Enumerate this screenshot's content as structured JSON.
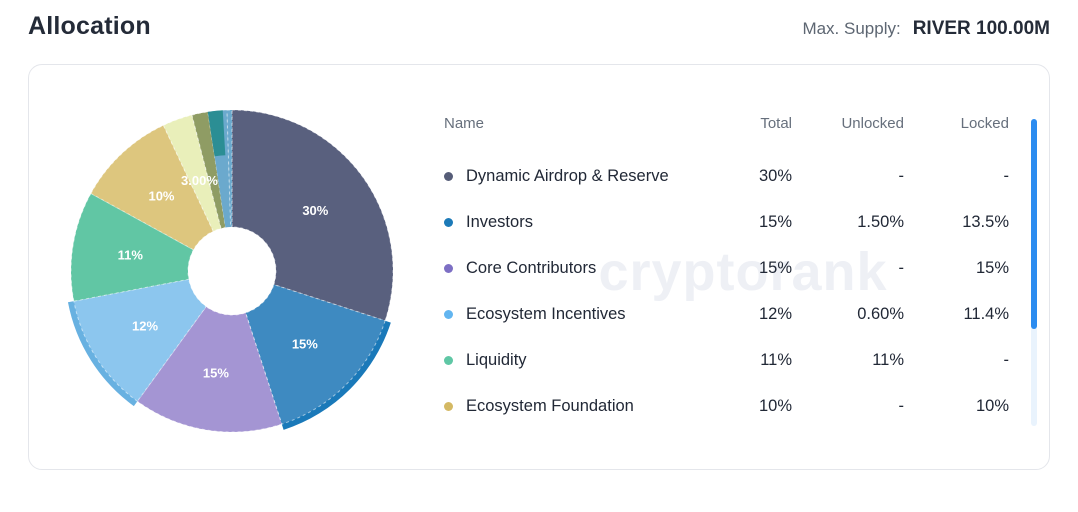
{
  "page": {
    "title": "Allocation",
    "max_supply_label": "Max. Supply:",
    "max_supply_value": "RIVER 100.00M"
  },
  "watermark": "cryptorank",
  "table": {
    "headers": {
      "name": "Name",
      "total": "Total",
      "unlocked": "Unlocked",
      "locked": "Locked"
    },
    "rows": [
      {
        "name": "Dynamic Airdrop & Reserve",
        "total": "30%",
        "unlocked": "-",
        "locked": "-",
        "dot": "#565d78"
      },
      {
        "name": "Investors",
        "total": "15%",
        "unlocked": "1.50%",
        "locked": "13.5%",
        "dot": "#1c7ab8"
      },
      {
        "name": "Core Contributors",
        "total": "15%",
        "unlocked": "-",
        "locked": "15%",
        "dot": "#7d6fc4"
      },
      {
        "name": "Ecosystem Incentives",
        "total": "12%",
        "unlocked": "0.60%",
        "locked": "11.4%",
        "dot": "#62b5f0"
      },
      {
        "name": "Liquidity",
        "total": "11%",
        "unlocked": "11%",
        "locked": "-",
        "dot": "#5fc7a5"
      },
      {
        "name": "Ecosystem Foundation",
        "total": "10%",
        "unlocked": "-",
        "locked": "10%",
        "dot": "#d4b964"
      }
    ]
  },
  "chart_data": {
    "type": "pie",
    "title": "Allocation",
    "donut": true,
    "start_angle_deg": 0,
    "direction": "clockwise",
    "legend_position": "table-right",
    "slices": [
      {
        "name": "Dynamic Airdrop & Reserve",
        "value": 30,
        "label": "30%",
        "color": "#59607E"
      },
      {
        "name": "Investors",
        "value": 15,
        "label": "15%",
        "color": "#3E8AC1",
        "edge_color": "#1A79B9"
      },
      {
        "name": "Core Contributors",
        "value": 15,
        "label": "15%",
        "color": "#A495D3"
      },
      {
        "name": "Ecosystem Incentives",
        "value": 12,
        "label": "12%",
        "color": "#8CC6EE",
        "edge_color": "#68B1E1"
      },
      {
        "name": "Liquidity",
        "value": 11,
        "label": "11%",
        "color": "#61C6A4"
      },
      {
        "name": "Ecosystem Foundation",
        "value": 10,
        "label": "10%",
        "color": "#DDC67E"
      },
      {
        "name": "",
        "value": 3,
        "label": "3.00%",
        "color": "#E9EFBA"
      },
      {
        "name": "",
        "value": 1.6,
        "label": "",
        "color": "#8F9C64"
      },
      {
        "name": "",
        "value": 1.9,
        "label": "",
        "color": "#2B8E94",
        "under_color": "#6BA9CD"
      },
      {
        "name": "",
        "value": 0.5,
        "label": "",
        "color": "#6BA9CD"
      }
    ]
  },
  "scrollbar": {
    "track_color": "#e9f3fd",
    "thumb_color": "#2b8cf0"
  }
}
